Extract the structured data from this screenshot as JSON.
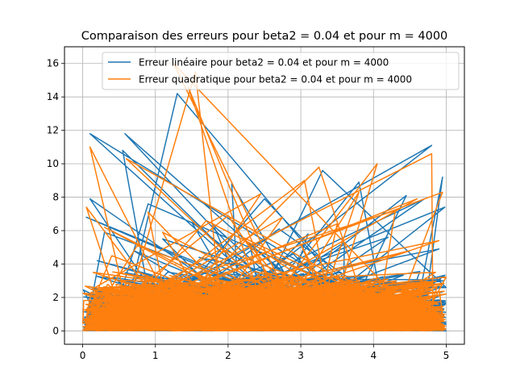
{
  "chart_data": {
    "type": "line",
    "title": "Comparaison des erreurs pour beta2 = 0.04 et pour m = 4000",
    "xlabel": "",
    "ylabel": "",
    "xlim": [
      -0.25,
      5.25
    ],
    "ylim": [
      -0.8,
      17.0
    ],
    "xticks": [
      0,
      1,
      2,
      3,
      4,
      5
    ],
    "yticks": [
      0,
      2,
      4,
      6,
      8,
      10,
      12,
      14,
      16
    ],
    "grid": true,
    "legend_position": "top-right",
    "series": [
      {
        "name": "Erreur linéaire pour beta2 = 0.04 et pour m = 4000",
        "color": "#1f77b4",
        "peaks": [
          [
            0.1,
            11.8
          ],
          [
            0.58,
            11.8
          ],
          [
            0.1,
            7.9
          ],
          [
            1.3,
            14.2
          ],
          [
            0.55,
            10.8
          ],
          [
            2.05,
            8.8
          ],
          [
            0.9,
            7.6
          ],
          [
            2.5,
            7.9
          ],
          [
            1.5,
            6.5
          ],
          [
            3.3,
            9.6
          ],
          [
            4.8,
            11.1
          ],
          [
            4.95,
            9.2
          ],
          [
            0.05,
            6.8
          ],
          [
            4.7,
            7.9
          ],
          [
            4.98,
            7.4
          ],
          [
            1.8,
            6.3
          ],
          [
            3.8,
            8.9
          ],
          [
            2.7,
            6.1
          ],
          [
            4.45,
            8.1
          ],
          [
            0.3,
            5.9
          ],
          [
            3.1,
            5.8
          ],
          [
            4.9,
            4.9
          ],
          [
            1.1,
            5.5
          ],
          [
            2.3,
            5.2
          ],
          [
            0.7,
            4.8
          ],
          [
            3.6,
            5.3
          ],
          [
            4.2,
            5.6
          ],
          [
            1.6,
            4.4
          ],
          [
            2.9,
            4.6
          ],
          [
            0.2,
            4.2
          ]
        ]
      },
      {
        "name": "Erreur quadratique pour beta2 = 0.04 et pour m = 4000",
        "color": "#ff7f0e",
        "peaks": [
          [
            1.25,
            16.0
          ],
          [
            1.55,
            15.5
          ],
          [
            0.1,
            11.0
          ],
          [
            1.45,
            14.6
          ],
          [
            0.6,
            10.3
          ],
          [
            0.05,
            7.4
          ],
          [
            4.05,
            10.0
          ],
          [
            3.05,
            9.0
          ],
          [
            4.8,
            10.6
          ],
          [
            4.95,
            8.3
          ],
          [
            2.45,
            8.2
          ],
          [
            3.25,
            9.8
          ],
          [
            0.9,
            7.1
          ],
          [
            2.0,
            6.9
          ],
          [
            3.8,
            8.3
          ],
          [
            4.6,
            7.9
          ],
          [
            1.7,
            6.6
          ],
          [
            0.3,
            6.2
          ],
          [
            2.75,
            6.8
          ],
          [
            4.3,
            7.2
          ],
          [
            3.5,
            6.4
          ],
          [
            1.1,
            5.9
          ],
          [
            2.2,
            5.6
          ],
          [
            0.75,
            5.1
          ],
          [
            4.9,
            5.4
          ],
          [
            3.0,
            5.2
          ],
          [
            1.9,
            4.9
          ],
          [
            4.5,
            4.8
          ],
          [
            0.4,
            4.5
          ],
          [
            2.6,
            4.4
          ]
        ]
      }
    ]
  }
}
